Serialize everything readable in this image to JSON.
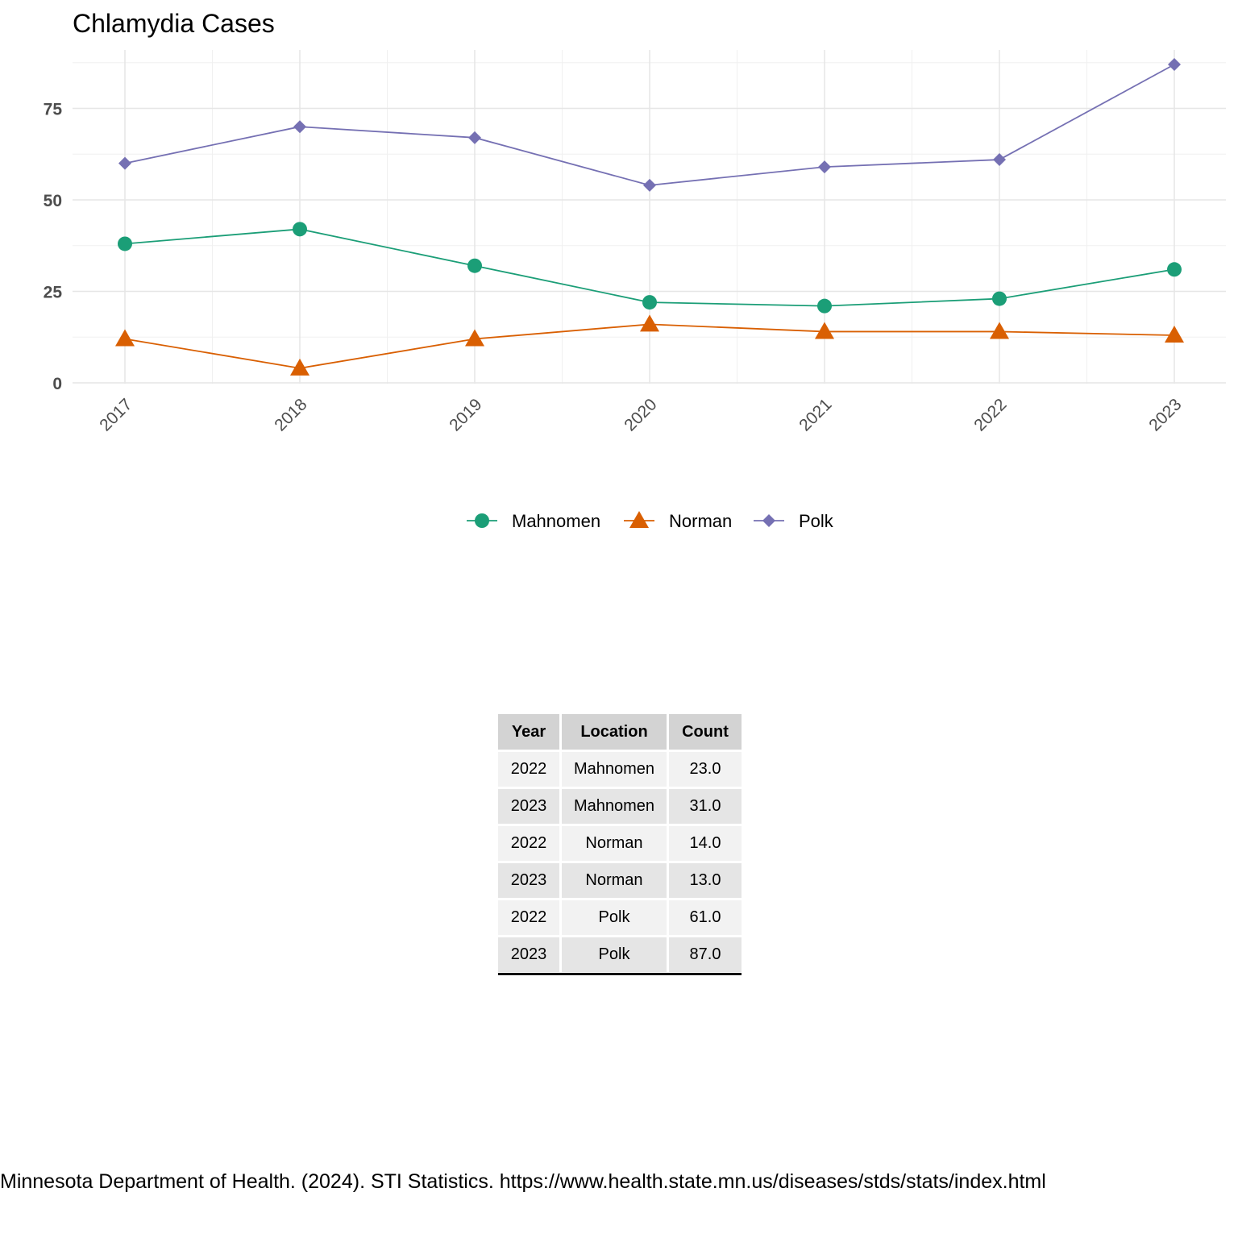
{
  "chart_data": {
    "type": "line",
    "title": "Chlamydia Cases",
    "xlabel": "",
    "ylabel": "",
    "x": [
      "2017",
      "2018",
      "2019",
      "2020",
      "2021",
      "2022",
      "2023"
    ],
    "ylim": [
      0,
      90
    ],
    "yticks": [
      0,
      25,
      50,
      75
    ],
    "grid": true,
    "legend_position": "bottom",
    "series": [
      {
        "name": "Mahnomen",
        "marker": "circle",
        "color": "#1b9e77",
        "values": [
          38,
          42,
          32,
          22,
          21,
          23,
          31
        ]
      },
      {
        "name": "Norman",
        "marker": "triangle",
        "color": "#d95f02",
        "values": [
          12,
          4,
          12,
          16,
          14,
          14,
          13
        ]
      },
      {
        "name": "Polk",
        "marker": "diamond",
        "color": "#7570b3",
        "values": [
          60,
          70,
          67,
          54,
          59,
          61,
          87
        ]
      }
    ]
  },
  "table": {
    "headers": [
      "Year",
      "Location",
      "Count"
    ],
    "rows": [
      [
        "2022",
        "Mahnomen",
        "23.0"
      ],
      [
        "2023",
        "Mahnomen",
        "31.0"
      ],
      [
        "2022",
        "Norman",
        "14.0"
      ],
      [
        "2023",
        "Norman",
        "13.0"
      ],
      [
        "2022",
        "Polk",
        "61.0"
      ],
      [
        "2023",
        "Polk",
        "87.0"
      ]
    ]
  },
  "source": "Minnesota Department of Health. (2024). STI Statistics. https://www.health.state.mn.us/diseases/stds/stats/index.html"
}
